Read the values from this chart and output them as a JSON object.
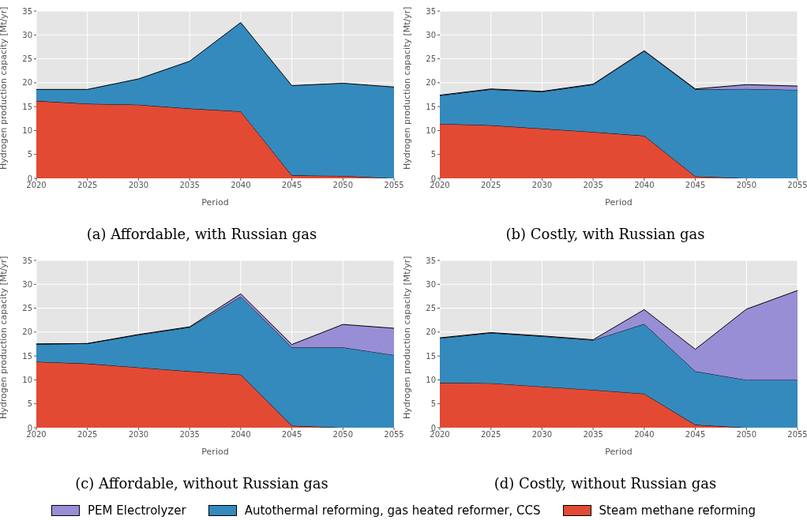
{
  "chart_data": [
    {
      "type": "area",
      "stacked": true,
      "title": "(a) Affordable, with Russian gas",
      "xlabel": "Period",
      "ylabel": "Hydrogen production capacity [Mt/yr]",
      "x": [
        2020,
        2025,
        2030,
        2035,
        2040,
        2045,
        2050,
        2055
      ],
      "xlim": [
        2020,
        2055
      ],
      "xticks": [
        2020,
        2025,
        2030,
        2035,
        2040,
        2045,
        2050,
        2055
      ],
      "ylim": [
        0,
        35
      ],
      "yticks": [
        0,
        5,
        10,
        15,
        20,
        25,
        30,
        35
      ],
      "grid": true,
      "series": [
        {
          "color": "#e24a33",
          "values": [
            16.2,
            15.6,
            15.4,
            14.6,
            14.0,
            0.6,
            0.5,
            0
          ]
        },
        {
          "color": "#348abd",
          "values": [
            2.4,
            3.0,
            5.4,
            9.9,
            18.6,
            18.8,
            19.4,
            19.1
          ]
        }
      ]
    },
    {
      "type": "area",
      "stacked": true,
      "title": "(b) Costly, with Russian gas",
      "xlabel": "Period",
      "ylabel": "Hydrogen production capacity [Mt/yr]",
      "x": [
        2020,
        2025,
        2030,
        2035,
        2040,
        2045,
        2050,
        2055
      ],
      "xlim": [
        2020,
        2055
      ],
      "xticks": [
        2020,
        2025,
        2030,
        2035,
        2040,
        2045,
        2050,
        2055
      ],
      "ylim": [
        0,
        35
      ],
      "yticks": [
        0,
        5,
        10,
        15,
        20,
        25,
        30,
        35
      ],
      "grid": true,
      "series": [
        {
          "color": "#e24a33",
          "values": [
            11.4,
            11.1,
            10.4,
            9.7,
            8.9,
            0.4,
            0,
            0
          ]
        },
        {
          "color": "#348abd",
          "values": [
            5.9,
            7.5,
            7.7,
            9.9,
            17.7,
            18.2,
            18.7,
            18.5
          ]
        },
        {
          "color": "#988ed5",
          "values": [
            0.1,
            0.1,
            0.1,
            0.1,
            0.1,
            0.1,
            0.9,
            0.8
          ]
        }
      ]
    },
    {
      "type": "area",
      "stacked": true,
      "title": "(c) Affordable, without Russian gas",
      "xlabel": "Period",
      "ylabel": "Hydrogen production capacity [Mt/yr]",
      "x": [
        2020,
        2025,
        2030,
        2035,
        2040,
        2045,
        2050,
        2055
      ],
      "xlim": [
        2020,
        2055
      ],
      "xticks": [
        2020,
        2025,
        2030,
        2035,
        2040,
        2045,
        2050,
        2055
      ],
      "ylim": [
        0,
        35
      ],
      "yticks": [
        0,
        5,
        10,
        15,
        20,
        25,
        30,
        35
      ],
      "grid": true,
      "series": [
        {
          "color": "#e24a33",
          "values": [
            13.8,
            13.4,
            12.6,
            11.8,
            11.1,
            0.4,
            0,
            0
          ]
        },
        {
          "color": "#348abd",
          "values": [
            3.7,
            4.2,
            6.8,
            9.2,
            16.3,
            16.4,
            16.8,
            15.2
          ]
        },
        {
          "color": "#988ed5",
          "values": [
            0,
            0,
            0.1,
            0.1,
            0.6,
            0.6,
            4.8,
            5.6
          ]
        }
      ]
    },
    {
      "type": "area",
      "stacked": true,
      "title": "(d) Costly, without Russian gas",
      "xlabel": "Period",
      "ylabel": "Hydrogen production capacity [Mt/yr]",
      "x": [
        2020,
        2025,
        2030,
        2035,
        2040,
        2045,
        2050,
        2055
      ],
      "xlim": [
        2020,
        2055
      ],
      "xticks": [
        2020,
        2025,
        2030,
        2035,
        2040,
        2045,
        2050,
        2055
      ],
      "ylim": [
        0,
        35
      ],
      "yticks": [
        0,
        5,
        10,
        15,
        20,
        25,
        30,
        35
      ],
      "grid": true,
      "legend": "bottom",
      "series": [
        {
          "name": "Steam methane reforming",
          "color": "#e24a33",
          "values": [
            9.4,
            9.3,
            8.6,
            7.9,
            7.1,
            0.6,
            0,
            0
          ]
        },
        {
          "name": "Autothermal reforming, gas heated reformer, CCS",
          "color": "#348abd",
          "values": [
            9.3,
            10.5,
            10.5,
            10.4,
            14.6,
            11.2,
            10.0,
            10.0
          ]
        },
        {
          "name": "PEM Electrolyzer",
          "color": "#988ed5",
          "values": [
            0.1,
            0.1,
            0.1,
            0.1,
            3.0,
            4.6,
            14.8,
            18.7
          ]
        }
      ]
    }
  ]
}
